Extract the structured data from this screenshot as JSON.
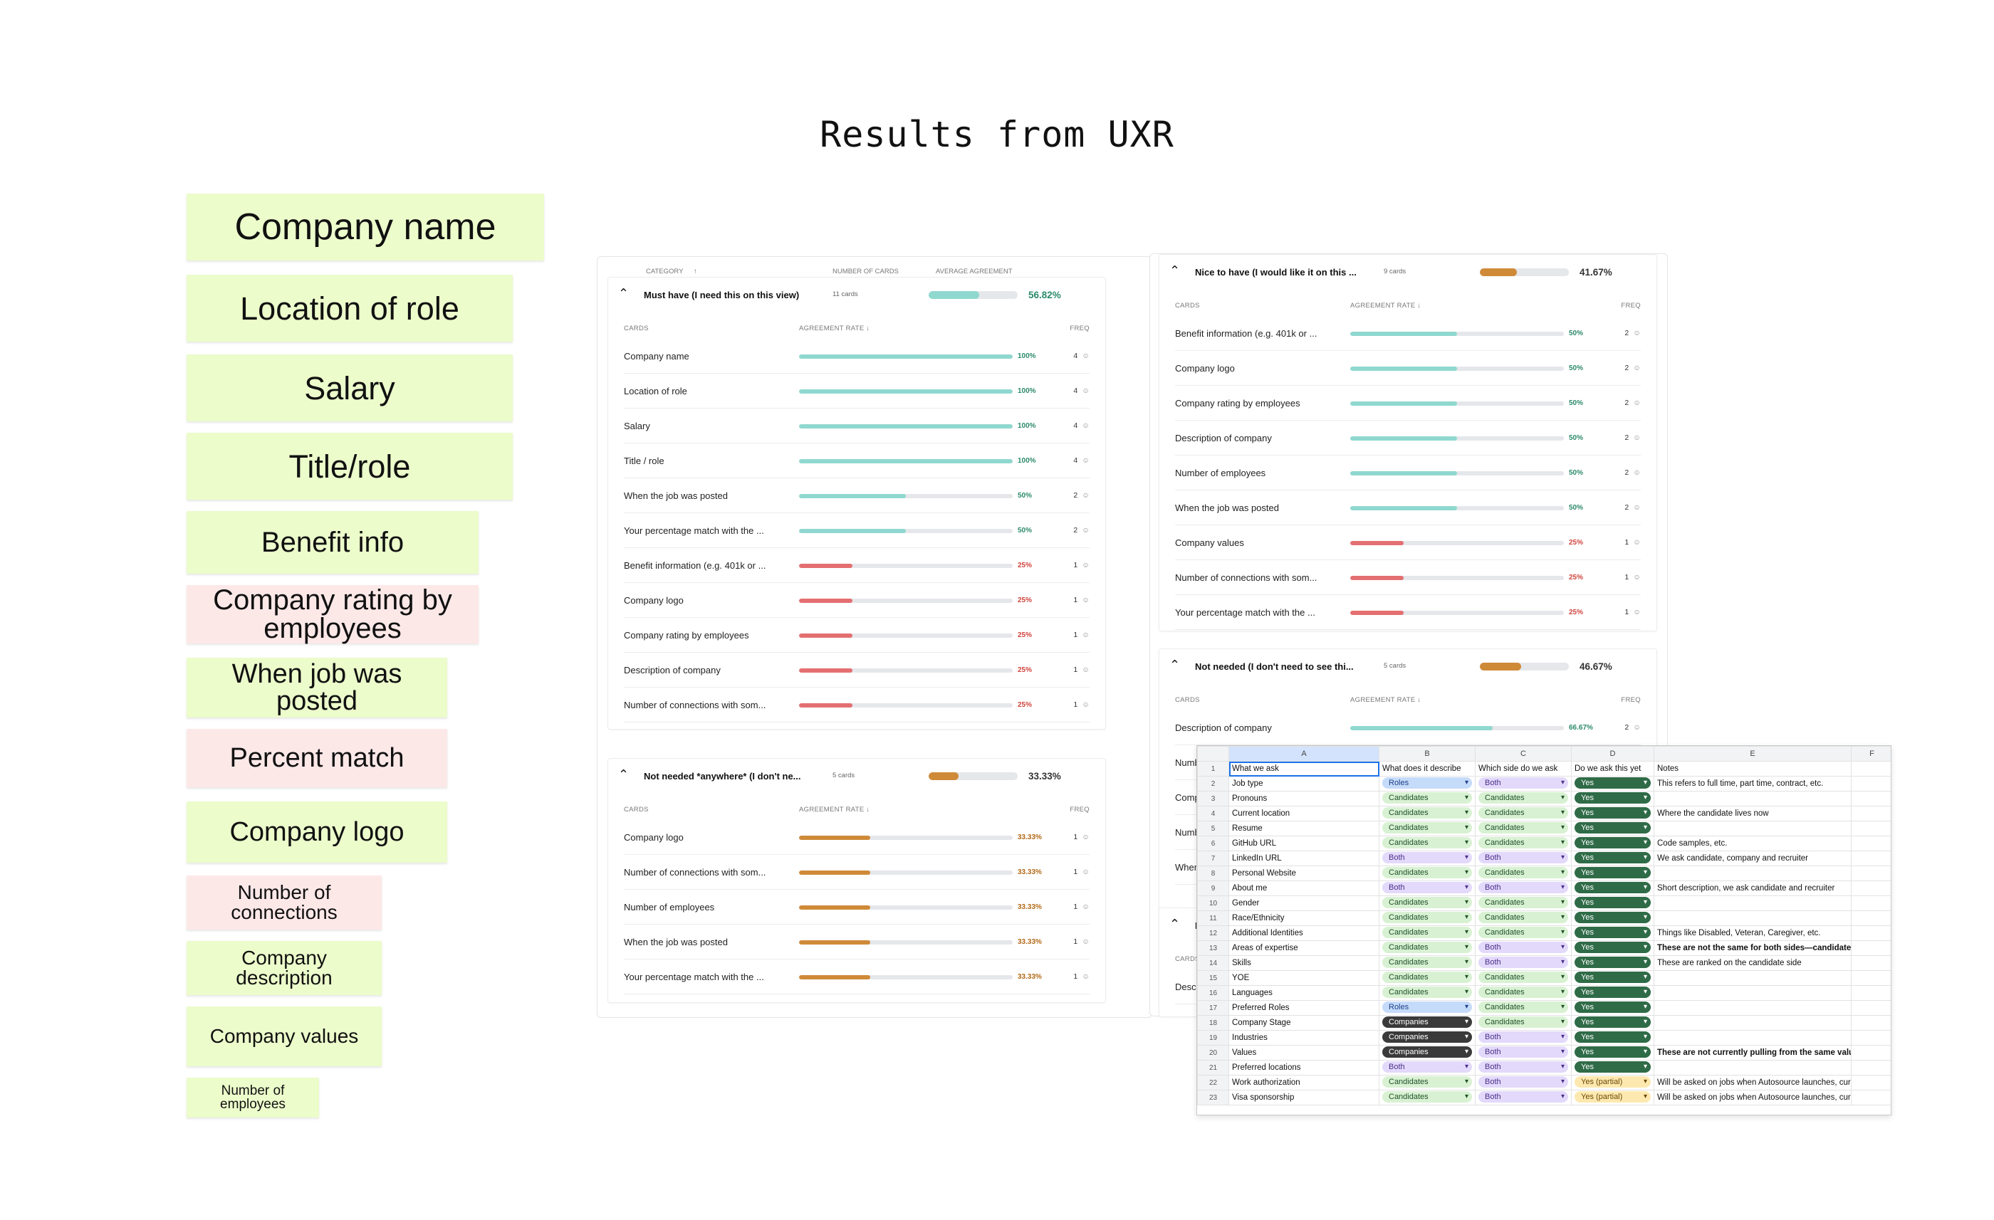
{
  "page_title": "Results from UXR",
  "stickies": [
    {
      "text": "Company name",
      "tone": "green"
    },
    {
      "text": "Location of role",
      "tone": "green"
    },
    {
      "text": "Salary",
      "tone": "green"
    },
    {
      "text": "Title/role",
      "tone": "green"
    },
    {
      "text": "Benefit info",
      "tone": "green"
    },
    {
      "text": "Company rating by employees",
      "tone": "pink"
    },
    {
      "text": "When job was posted",
      "tone": "green"
    },
    {
      "text": "Percent match",
      "tone": "pink"
    },
    {
      "text": "Company logo",
      "tone": "green"
    },
    {
      "text": "Number of connections",
      "tone": "pink"
    },
    {
      "text": "Company description",
      "tone": "green"
    },
    {
      "text": "Company values",
      "tone": "green"
    },
    {
      "text": "Number of employees",
      "tone": "green"
    }
  ],
  "colors": {
    "teal": "#8fd8cf",
    "red": "#e46f71",
    "amber": "#cf8a38",
    "pct_green": "#2c8a6a",
    "pct_red": "#d0443e",
    "pct_amber": "#b26a17"
  },
  "left_panel": {
    "headers": {
      "category": "CATEGORY",
      "category_sort_icon": "arrow-up-icon",
      "cards": "NUMBER OF CARDS",
      "agreement": "AVERAGE AGREEMENT"
    },
    "groups": [
      {
        "name": "Must have (I need this on this view)",
        "count": "11 cards",
        "avg": "56.82%",
        "avg_fraction": 0.5682,
        "tone": "teal",
        "columns": {
          "cards": "CARDS",
          "rate": "AGREEMENT RATE",
          "freq": "FREQ"
        },
        "rows": [
          {
            "label": "Company name",
            "pct": "100%",
            "value": 1.0,
            "freq": "4",
            "tone": "teal"
          },
          {
            "label": "Location of role",
            "pct": "100%",
            "value": 1.0,
            "freq": "4",
            "tone": "teal"
          },
          {
            "label": "Salary",
            "pct": "100%",
            "value": 1.0,
            "freq": "4",
            "tone": "teal"
          },
          {
            "label": "Title / role",
            "pct": "100%",
            "value": 1.0,
            "freq": "4",
            "tone": "teal"
          },
          {
            "label": "When the job was posted",
            "pct": "50%",
            "value": 0.5,
            "freq": "2",
            "tone": "teal"
          },
          {
            "label": "Your percentage match with the ...",
            "pct": "50%",
            "value": 0.5,
            "freq": "2",
            "tone": "teal"
          },
          {
            "label": "Benefit information (e.g. 401k or ...",
            "pct": "25%",
            "value": 0.25,
            "freq": "1",
            "tone": "red"
          },
          {
            "label": "Company logo",
            "pct": "25%",
            "value": 0.25,
            "freq": "1",
            "tone": "red"
          },
          {
            "label": "Company rating by employees",
            "pct": "25%",
            "value": 0.25,
            "freq": "1",
            "tone": "red"
          },
          {
            "label": "Description of company",
            "pct": "25%",
            "value": 0.25,
            "freq": "1",
            "tone": "red"
          },
          {
            "label": "Number of connections with som...",
            "pct": "25%",
            "value": 0.25,
            "freq": "1",
            "tone": "red"
          }
        ]
      },
      {
        "name": "Not needed *anywhere* (I don't ne...",
        "count": "5 cards",
        "avg": "33.33%",
        "avg_fraction": 0.3333,
        "tone": "amber",
        "columns": {
          "cards": "CARDS",
          "rate": "AGREEMENT RATE",
          "freq": "FREQ"
        },
        "rows": [
          {
            "label": "Company logo",
            "pct": "33.33%",
            "value": 0.3333,
            "freq": "1",
            "tone": "amber"
          },
          {
            "label": "Number of connections with som...",
            "pct": "33.33%",
            "value": 0.3333,
            "freq": "1",
            "tone": "amber"
          },
          {
            "label": "Number of employees",
            "pct": "33.33%",
            "value": 0.3333,
            "freq": "1",
            "tone": "amber"
          },
          {
            "label": "When the job was posted",
            "pct": "33.33%",
            "value": 0.3333,
            "freq": "1",
            "tone": "amber"
          },
          {
            "label": "Your percentage match with the ...",
            "pct": "33.33%",
            "value": 0.3333,
            "freq": "1",
            "tone": "amber"
          }
        ]
      }
    ]
  },
  "right_panel": {
    "groups": [
      {
        "name": "Nice to have (I would like it on this ...",
        "count": "9 cards",
        "avg": "41.67%",
        "avg_fraction": 0.4167,
        "tone": "amber",
        "columns": {
          "cards": "CARDS",
          "rate": "AGREEMENT RATE",
          "freq": "FREQ"
        },
        "rows": [
          {
            "label": "Benefit information (e.g. 401k or ...",
            "pct": "50%",
            "value": 0.5,
            "freq": "2",
            "tone": "teal"
          },
          {
            "label": "Company logo",
            "pct": "50%",
            "value": 0.5,
            "freq": "2",
            "tone": "teal"
          },
          {
            "label": "Company rating by employees",
            "pct": "50%",
            "value": 0.5,
            "freq": "2",
            "tone": "teal"
          },
          {
            "label": "Description of company",
            "pct": "50%",
            "value": 0.5,
            "freq": "2",
            "tone": "teal"
          },
          {
            "label": "Number of employees",
            "pct": "50%",
            "value": 0.5,
            "freq": "2",
            "tone": "teal"
          },
          {
            "label": "When the job was posted",
            "pct": "50%",
            "value": 0.5,
            "freq": "2",
            "tone": "teal"
          },
          {
            "label": "Company values",
            "pct": "25%",
            "value": 0.25,
            "freq": "1",
            "tone": "red"
          },
          {
            "label": "Number of connections with som...",
            "pct": "25%",
            "value": 0.25,
            "freq": "1",
            "tone": "red"
          },
          {
            "label": "Your percentage match with the ...",
            "pct": "25%",
            "value": 0.25,
            "freq": "1",
            "tone": "red"
          }
        ]
      },
      {
        "name": "Not needed (I don't need to see thi...",
        "count": "5 cards",
        "avg": "46.67%",
        "avg_fraction": 0.4667,
        "tone": "amber",
        "columns": {
          "cards": "CARDS",
          "rate": "AGREEMENT RATE",
          "freq": "FREQ"
        },
        "rows": [
          {
            "label": "Description of company",
            "pct": "66.67%",
            "value": 0.6667,
            "freq": "2",
            "tone": "teal"
          },
          {
            "label": "Numb",
            "pct": "",
            "value": 0,
            "freq": "",
            "tone": "teal"
          },
          {
            "label": "Comp",
            "pct": "",
            "value": 0,
            "freq": "",
            "tone": "teal"
          },
          {
            "label": "Numb",
            "pct": "",
            "value": 0,
            "freq": "",
            "tone": "teal"
          },
          {
            "label": "When",
            "pct": "",
            "value": 0,
            "freq": "",
            "tone": "teal"
          }
        ]
      },
      {
        "name": "N",
        "count": "",
        "avg": "",
        "avg_fraction": 0,
        "tone": "amber",
        "columns": {
          "cards": "CARDS",
          "rate": "",
          "freq": ""
        },
        "rows": [
          {
            "label": "Descr",
            "pct": "",
            "value": 0,
            "freq": "",
            "tone": "teal"
          }
        ]
      }
    ]
  },
  "spreadsheet": {
    "columns": [
      "A",
      "B",
      "C",
      "D",
      "E",
      "F"
    ],
    "header": [
      "What we ask",
      "What does it describe",
      "Which side do we ask",
      "Do we ask this yet",
      "Notes",
      ""
    ],
    "rows": [
      {
        "n": "2",
        "a": "Job type",
        "b": "Roles",
        "c": "Both",
        "d": "Yes",
        "e": "This refers to full time, part time, contract, etc.",
        "bold": false
      },
      {
        "n": "3",
        "a": "Pronouns",
        "b": "Candidates",
        "c": "Candidates",
        "d": "Yes",
        "e": "",
        "bold": false
      },
      {
        "n": "4",
        "a": "Current location",
        "b": "Candidates",
        "c": "Candidates",
        "d": "Yes",
        "e": "Where the candidate lives now",
        "bold": false
      },
      {
        "n": "5",
        "a": "Resume",
        "b": "Candidates",
        "c": "Candidates",
        "d": "Yes",
        "e": "",
        "bold": false
      },
      {
        "n": "6",
        "a": "GitHub URL",
        "b": "Candidates",
        "c": "Candidates",
        "d": "Yes",
        "e": "Code samples, etc.",
        "bold": false
      },
      {
        "n": "7",
        "a": "LinkedIn URL",
        "b": "Both",
        "c": "Both",
        "d": "Yes",
        "e": "We ask candidate, company and recruiter",
        "bold": false
      },
      {
        "n": "8",
        "a": "Personal Website",
        "b": "Candidates",
        "c": "Candidates",
        "d": "Yes",
        "e": "",
        "bold": false
      },
      {
        "n": "9",
        "a": "About me",
        "b": "Both",
        "c": "Both",
        "d": "Yes",
        "e": "Short description, we ask candidate and recruiter",
        "bold": false
      },
      {
        "n": "10",
        "a": "Gender",
        "b": "Candidates",
        "c": "Candidates",
        "d": "Yes",
        "e": "",
        "bold": false
      },
      {
        "n": "11",
        "a": "Race/Ethnicity",
        "b": "Candidates",
        "c": "Candidates",
        "d": "Yes",
        "e": "",
        "bold": false
      },
      {
        "n": "12",
        "a": "Additional Identities",
        "b": "Candidates",
        "c": "Candidates",
        "d": "Yes",
        "e": "Things like Disabled, Veteran, Caregiver, etc.",
        "bold": false
      },
      {
        "n": "13",
        "a": "Areas of expertise",
        "b": "Candidates",
        "c": "Both",
        "d": "Yes",
        "e": "These are not the same for both sides—candidate-side",
        "bold": true
      },
      {
        "n": "14",
        "a": "Skills",
        "b": "Candidates",
        "c": "Both",
        "d": "Yes",
        "e": "These are ranked on the candidate side",
        "bold": false
      },
      {
        "n": "15",
        "a": "YOE",
        "b": "Candidates",
        "c": "Candidates",
        "d": "Yes",
        "e": "",
        "bold": false
      },
      {
        "n": "16",
        "a": "Languages",
        "b": "Candidates",
        "c": "Candidates",
        "d": "Yes",
        "e": "",
        "bold": false
      },
      {
        "n": "17",
        "a": "Preferred Roles",
        "b": "Roles",
        "c": "Candidates",
        "d": "Yes",
        "e": "",
        "bold": false
      },
      {
        "n": "18",
        "a": "Company Stage",
        "b": "Companies",
        "c": "Candidates",
        "d": "Yes",
        "e": "",
        "bold": false
      },
      {
        "n": "19",
        "a": "Industries",
        "b": "Companies",
        "c": "Both",
        "d": "Yes",
        "e": "",
        "bold": false
      },
      {
        "n": "20",
        "a": "Values",
        "b": "Companies",
        "c": "Both",
        "d": "Yes",
        "e": "These are not currently pulling from the same values.",
        "bold": true
      },
      {
        "n": "21",
        "a": "Preferred locations",
        "b": "Both",
        "c": "Both",
        "d": "Yes",
        "e": "",
        "bold": false
      },
      {
        "n": "22",
        "a": "Work authorization",
        "b": "Candidates",
        "c": "Both",
        "d": "Yes (partial)",
        "e": "Will be asked on jobs when Autosource launches, current",
        "bold": false
      },
      {
        "n": "23",
        "a": "Visa sponsorship",
        "b": "Candidates",
        "c": "Both",
        "d": "Yes (partial)",
        "e": "Will be asked on jobs when Autosource launches, current",
        "bold": false
      }
    ]
  }
}
